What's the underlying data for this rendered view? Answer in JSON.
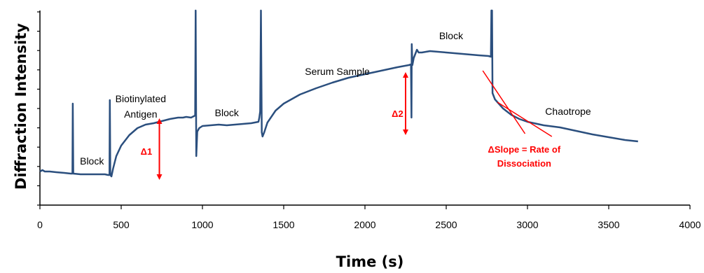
{
  "chart_data": {
    "type": "line",
    "xlabel": "Time (s)",
    "ylabel": "Diffraction Intensity",
    "xlim": [
      0,
      4000
    ],
    "xticks": [
      0,
      500,
      1000,
      1500,
      2000,
      2500,
      3000,
      3500,
      4000
    ],
    "grid": false,
    "legend": "none",
    "series_color": "#2b4f7e",
    "annotation_color": "#ff0000",
    "series": [
      {
        "points": [
          [
            0,
            48
          ],
          [
            15,
            50
          ],
          [
            30,
            48
          ],
          [
            60,
            48
          ],
          [
            100,
            47
          ],
          [
            150,
            46
          ],
          [
            190,
            45
          ],
          [
            200,
            45
          ],
          [
            202,
            145
          ],
          [
            205,
            45
          ],
          [
            250,
            44
          ],
          [
            300,
            44
          ],
          [
            350,
            44
          ],
          [
            400,
            44
          ],
          [
            420,
            43
          ],
          [
            428,
            43
          ],
          [
            430,
            150
          ],
          [
            433,
            43
          ],
          [
            440,
            41
          ],
          [
            450,
            52
          ],
          [
            470,
            70
          ],
          [
            500,
            85
          ],
          [
            550,
            100
          ],
          [
            600,
            110
          ],
          [
            650,
            115
          ],
          [
            700,
            117
          ],
          [
            750,
            120
          ],
          [
            800,
            123
          ],
          [
            850,
            125
          ],
          [
            880,
            125
          ],
          [
            900,
            126
          ],
          [
            930,
            125
          ],
          [
            955,
            128
          ],
          [
            958,
            278
          ],
          [
            962,
            70
          ],
          [
            968,
            105
          ],
          [
            980,
            110
          ],
          [
            1000,
            113
          ],
          [
            1050,
            114
          ],
          [
            1100,
            115
          ],
          [
            1150,
            114
          ],
          [
            1200,
            115
          ],
          [
            1250,
            116
          ],
          [
            1300,
            117
          ],
          [
            1345,
            119
          ],
          [
            1350,
            125
          ],
          [
            1355,
            134
          ],
          [
            1360,
            278
          ],
          [
            1365,
            104
          ],
          [
            1370,
            98
          ],
          [
            1380,
            104
          ],
          [
            1400,
            118
          ],
          [
            1450,
            135
          ],
          [
            1500,
            145
          ],
          [
            1600,
            158
          ],
          [
            1700,
            167
          ],
          [
            1800,
            175
          ],
          [
            1900,
            182
          ],
          [
            2000,
            187
          ],
          [
            2100,
            192
          ],
          [
            2200,
            197
          ],
          [
            2270,
            200
          ],
          [
            2283,
            201
          ],
          [
            2286,
            125
          ],
          [
            2288,
            230
          ],
          [
            2292,
            200
          ],
          [
            2300,
            210
          ],
          [
            2310,
            216
          ],
          [
            2320,
            222
          ],
          [
            2330,
            218
          ],
          [
            2350,
            218
          ],
          [
            2400,
            220
          ],
          [
            2500,
            218
          ],
          [
            2600,
            216
          ],
          [
            2700,
            214
          ],
          [
            2760,
            213
          ],
          [
            2775,
            212
          ],
          [
            2778,
            278
          ],
          [
            2782,
            278
          ],
          [
            2785,
            160
          ],
          [
            2800,
            151
          ],
          [
            2850,
            138
          ],
          [
            2900,
            129
          ],
          [
            2950,
            123
          ],
          [
            3000,
            119
          ],
          [
            3100,
            114
          ],
          [
            3200,
            111
          ],
          [
            3300,
            106
          ],
          [
            3400,
            101
          ],
          [
            3500,
            97
          ],
          [
            3600,
            93
          ],
          [
            3680,
            91
          ]
        ]
      }
    ],
    "annotations": [
      {
        "text": "Block",
        "x": 320,
        "y": 58,
        "color": "black"
      },
      {
        "text": "Biotinylated",
        "x": 620,
        "y": 147,
        "color": "black"
      },
      {
        "text": "Antigen",
        "x": 620,
        "y": 125,
        "color": "black"
      },
      {
        "text": "Block",
        "x": 1150,
        "y": 127,
        "color": "black"
      },
      {
        "text": "Serum Sample",
        "x": 1830,
        "y": 186,
        "color": "black"
      },
      {
        "text": "Block",
        "x": 2530,
        "y": 237,
        "color": "black"
      },
      {
        "text": "Chaotrope",
        "x": 3250,
        "y": 129,
        "color": "black"
      },
      {
        "text": "Δ1",
        "x": 655,
        "y": 72,
        "color": "red"
      },
      {
        "text": "Δ2",
        "x": 2200,
        "y": 126,
        "color": "red"
      },
      {
        "text": "ΔSlope = Rate of",
        "x": 2980,
        "y": 75,
        "color": "red"
      },
      {
        "text": "Dissociation",
        "x": 2980,
        "y": 55,
        "color": "red"
      }
    ],
    "delta_arrows": [
      {
        "x": 735,
        "y_from": 38,
        "y_to": 122
      },
      {
        "x": 2250,
        "y_from": 102,
        "y_to": 188
      }
    ],
    "slope_lines": [
      {
        "from": [
          2725,
          192
        ],
        "to": [
          2985,
          102
        ]
      },
      {
        "from": [
          2815,
          147
        ],
        "to": [
          3150,
          98
        ]
      }
    ]
  }
}
